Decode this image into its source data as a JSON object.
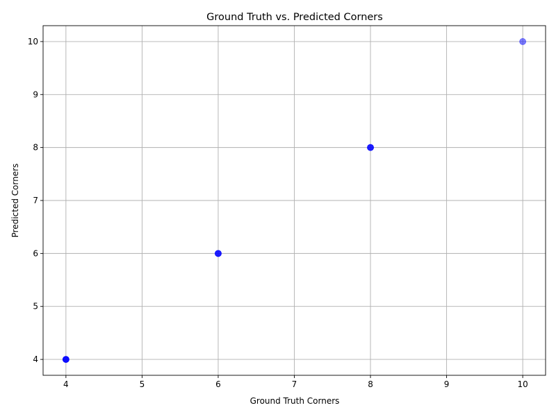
{
  "chart_data": {
    "type": "scatter",
    "title": "Ground Truth vs. Predicted Corners",
    "xlabel": "Ground Truth Corners",
    "ylabel": "Predicted Corners",
    "xlim": [
      3.7,
      10.3
    ],
    "ylim": [
      3.7,
      10.3
    ],
    "xticks": [
      4,
      5,
      6,
      7,
      8,
      9,
      10
    ],
    "yticks": [
      4,
      5,
      6,
      7,
      8,
      9,
      10
    ],
    "grid": true,
    "marker_color": "#0000ff",
    "marker_alpha": 0.5,
    "points": [
      {
        "x": 4,
        "y": 4
      },
      {
        "x": 4,
        "y": 4
      },
      {
        "x": 4,
        "y": 4
      },
      {
        "x": 4,
        "y": 4
      },
      {
        "x": 6,
        "y": 6
      },
      {
        "x": 6,
        "y": 6
      },
      {
        "x": 6,
        "y": 6
      },
      {
        "x": 8,
        "y": 8
      },
      {
        "x": 8,
        "y": 8
      },
      {
        "x": 8,
        "y": 8
      },
      {
        "x": 10,
        "y": 10
      }
    ]
  }
}
